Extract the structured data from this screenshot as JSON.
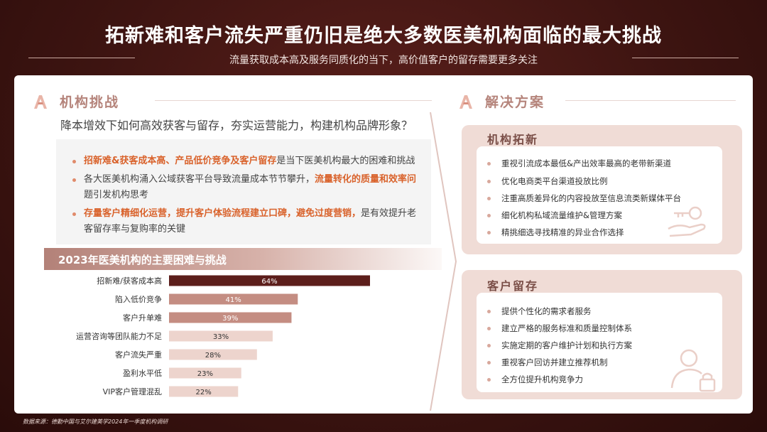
{
  "header": {
    "title": "拓新难和客户流失严重仍旧是绝大多数医美机构面临的最大挑战",
    "subtitle": "流量获取成本高及服务同质化的当下，高价值客户的留存需要更多关注"
  },
  "left": {
    "section_label": "机构挑战",
    "question": "降本增效下如何高效获客与留存，夯实运营能力，构建机构品牌形象？",
    "bullets": [
      {
        "hl1": "招新难&获客成本高、产品低价竞争及客户留存",
        "rest1": "是当下医美机构最大的困难和挑战"
      },
      {
        "pre": "各大医美机构涌入公域获客平台导致流量成本节节攀升，",
        "hl": "流量转化的质量和效率问",
        "line2": "题引发机构思考"
      },
      {
        "hl1": "存量客户精细化运营，提升客户体验流程建立口碑，避免过度营销，",
        "rest1": "是有效提升老",
        "line2": "客留存率与复购率的关键"
      }
    ]
  },
  "chart_data": {
    "type": "bar",
    "orientation": "horizontal",
    "title": "2023年医美机构的主要困难与挑战",
    "categories": [
      "招新难/获客成本高",
      "陷入低价竞争",
      "客户升单难",
      "运营咨询等团队能力不足",
      "客户流失严重",
      "盈利水平低",
      "VIP客户管理混乱"
    ],
    "values": [
      64,
      41,
      39,
      33,
      28,
      23,
      22
    ],
    "value_labels": [
      "64%",
      "41%",
      "39%",
      "33%",
      "28%",
      "23%",
      "22%"
    ],
    "unit": "%",
    "xlim": [
      0,
      64
    ],
    "colors": {
      "top": "#5c1e1b",
      "mid": "#c48d82",
      "low": "#edd4cd"
    },
    "grid": false,
    "legend": "none"
  },
  "right": {
    "section_label": "解决方案",
    "cards": [
      {
        "title": "机构拓新",
        "items": [
          "重视引流成本最低&产出效率最高的老带新渠道",
          "优化电商类平台渠道投放比例",
          "注重高质差异化的内容投放至信息流类新媒体平台",
          "细化机构私域流量维护&管理方案",
          "精挑细选寻找精准的异业合作选择"
        ]
      },
      {
        "title": "客户留存",
        "items": [
          "提供个性化的需求者服务",
          "建立严格的服务标准和质量控制体系",
          "实施定期的客户维护计划和执行方案",
          "重视客户回访并建立推荐机制",
          "全方位提升机构竞争力"
        ]
      }
    ]
  },
  "footer": {
    "source": "数据来源：德勤中国与艾尔建美学2024年一季度机构调研"
  },
  "icons": [
    "a-logo-icon",
    "key-hand-icon",
    "user-lock-icon",
    "chevron-right-icon"
  ]
}
